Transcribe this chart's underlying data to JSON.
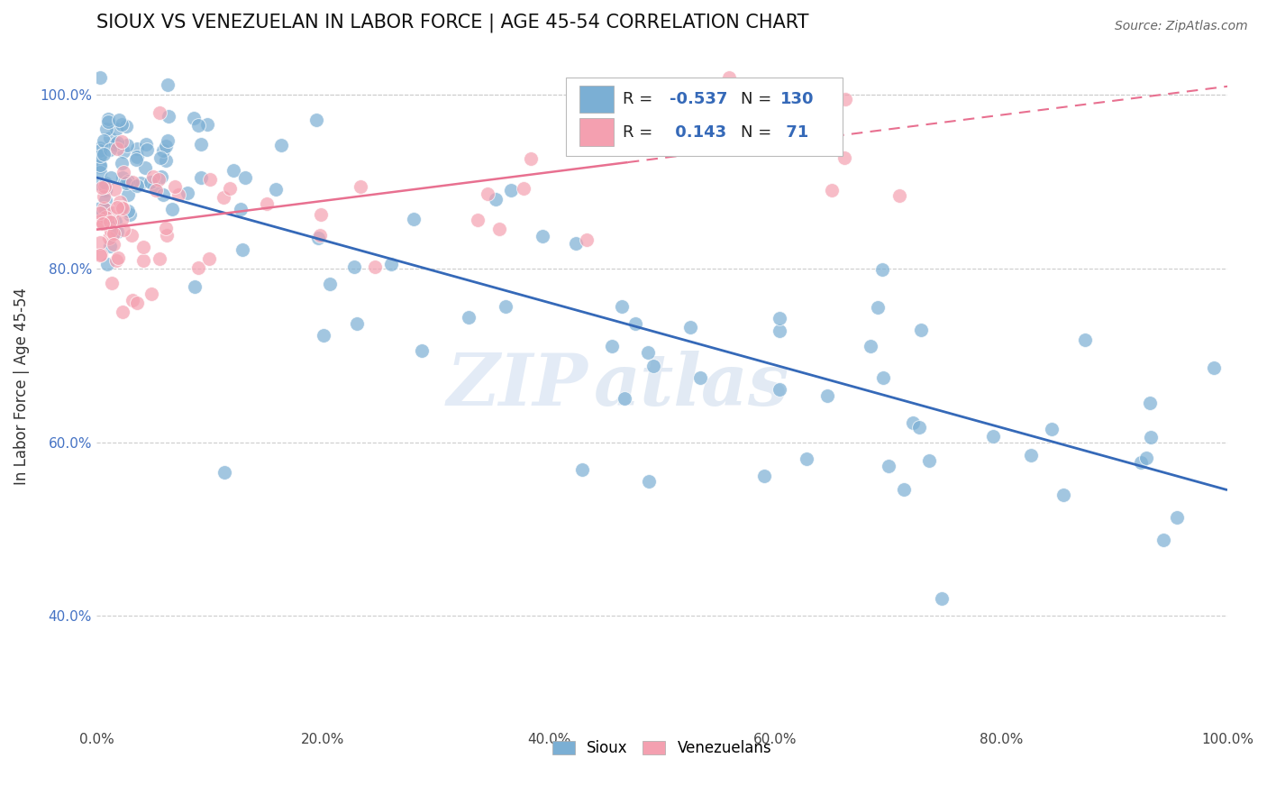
{
  "title": "SIOUX VS VENEZUELAN IN LABOR FORCE | AGE 45-54 CORRELATION CHART",
  "source_text": "Source: ZipAtlas.com",
  "ylabel": "In Labor Force | Age 45-54",
  "xlim": [
    0.0,
    1.0
  ],
  "ylim": [
    0.27,
    1.06
  ],
  "xticks": [
    0.0,
    0.2,
    0.4,
    0.6,
    0.8,
    1.0
  ],
  "yticks": [
    0.4,
    0.6,
    0.8,
    1.0
  ],
  "xtick_labels": [
    "0.0%",
    "20.0%",
    "40.0%",
    "60.0%",
    "80.0%",
    "100.0%"
  ],
  "ytick_labels": [
    "40.0%",
    "60.0%",
    "80.0%",
    "100.0%"
  ],
  "blue_R": -0.537,
  "blue_N": 130,
  "pink_R": 0.143,
  "pink_N": 71,
  "blue_color": "#7BAFD4",
  "pink_color": "#F4A0B0",
  "blue_line_color": "#3569B8",
  "pink_line_color": "#E87090",
  "watermark_zip": "ZIP",
  "watermark_atlas": "atlas",
  "background_color": "#ffffff",
  "grid_color": "#cccccc",
  "blue_line_start_y": 0.905,
  "blue_line_end_y": 0.545,
  "pink_line_start_y": 0.845,
  "pink_line_end_y": 1.01
}
